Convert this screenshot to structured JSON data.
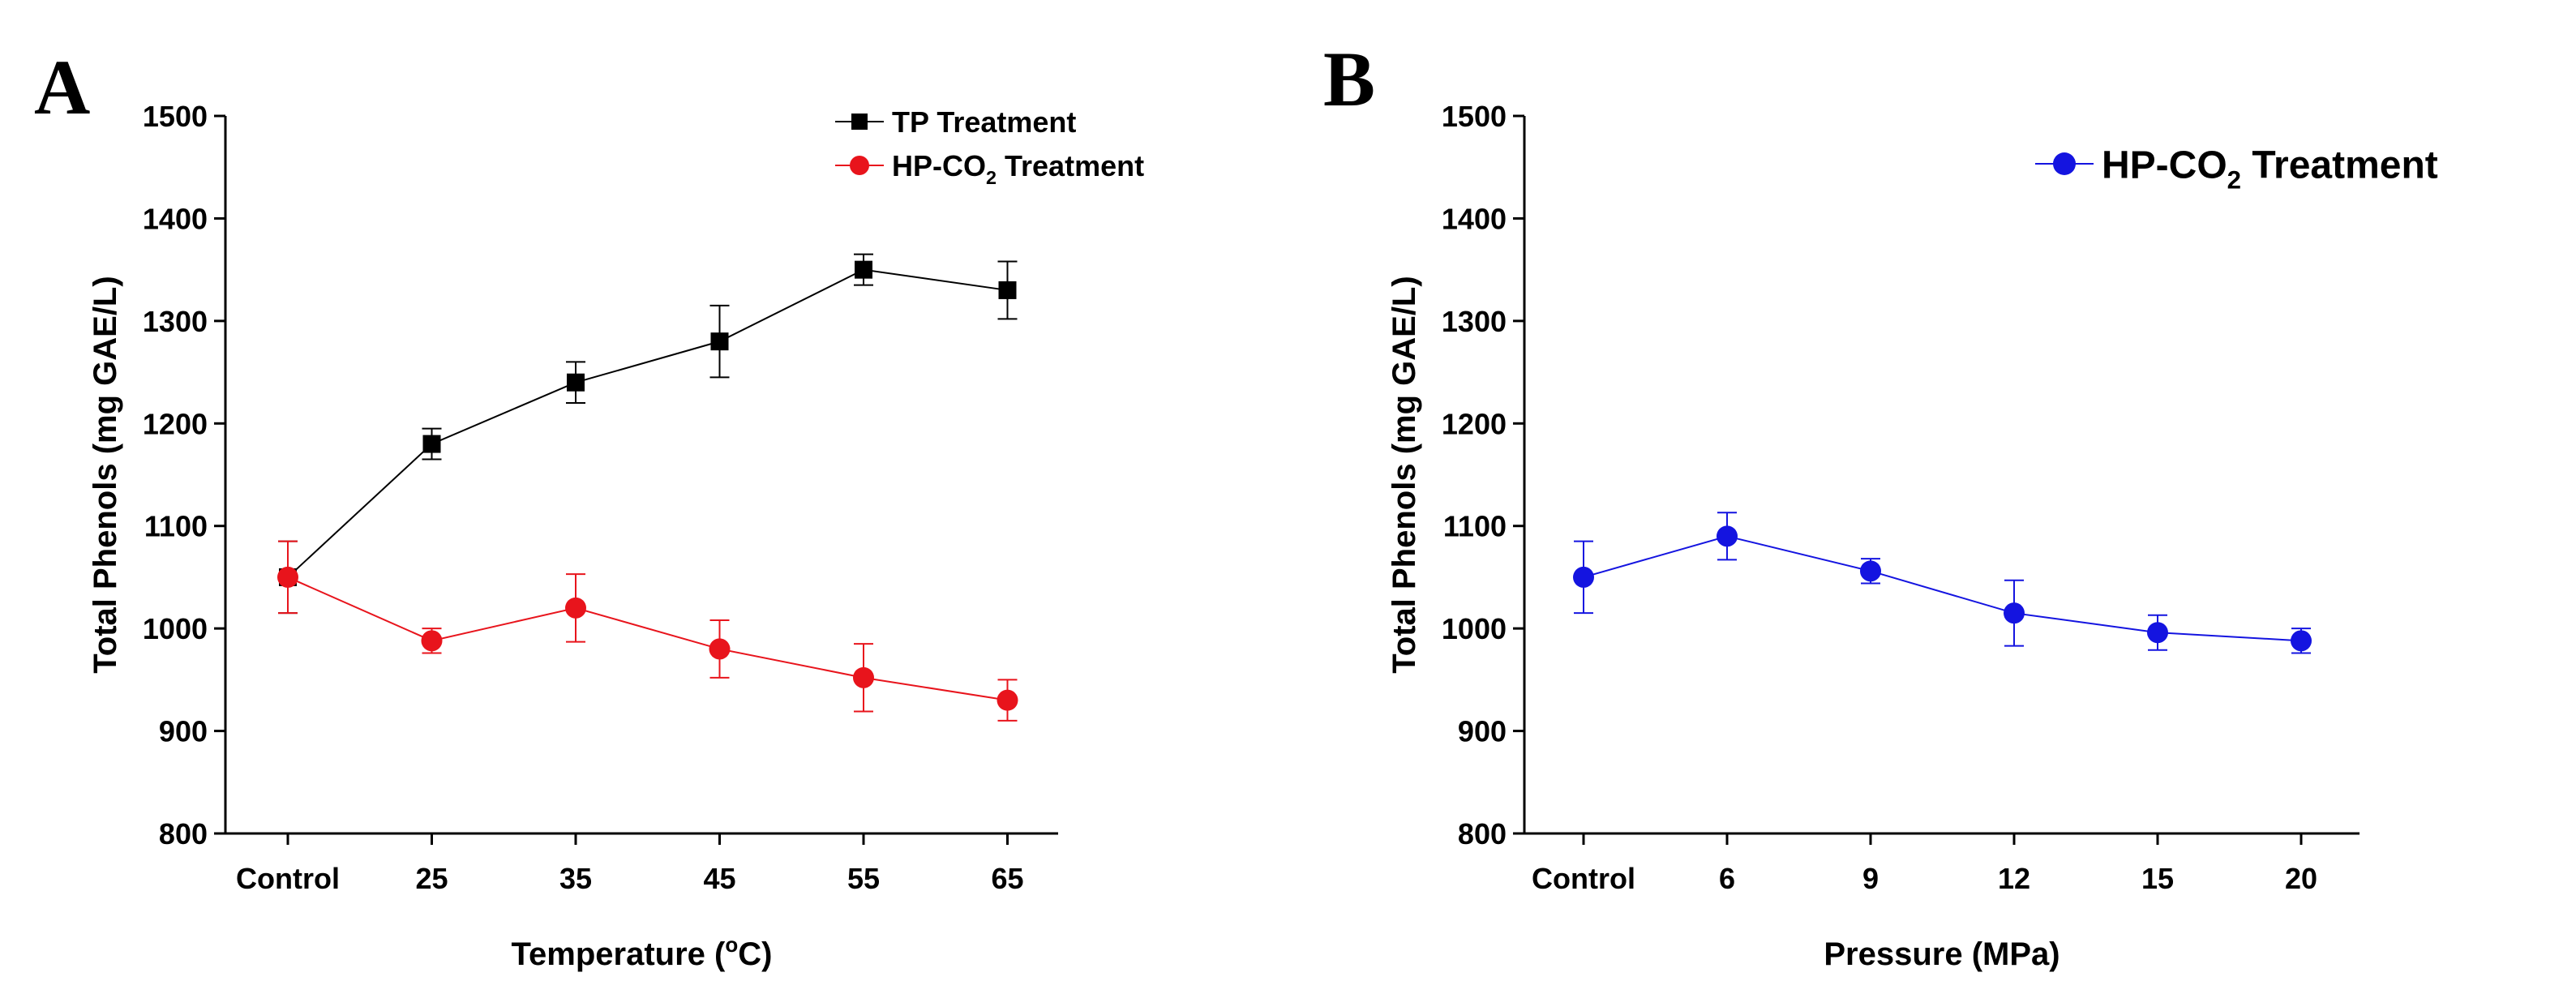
{
  "figure": {
    "panels": [
      {
        "letter": "A",
        "xlabel": "Temperature (",
        "xlabel_sup": "o",
        "xlabel_suffix": "C)",
        "ylabel": "Total Phenols (mg GAE/L)"
      },
      {
        "letter": "B",
        "xlabel": "Pressure (MPa)",
        "ylabel": "Total Phenols (mg GAE/L)"
      }
    ]
  },
  "chart_data": [
    {
      "type": "line",
      "panel": "A",
      "title": "",
      "xlabel": "Temperature (oC)",
      "ylabel": "Total Phenols (mg GAE/L)",
      "categories": [
        "Control",
        "25",
        "35",
        "45",
        "55",
        "65"
      ],
      "ylim": [
        800,
        1500
      ],
      "yticks": [
        800,
        900,
        1000,
        1100,
        1200,
        1300,
        1400,
        1500
      ],
      "legend_position": "top-right",
      "grid": false,
      "series": [
        {
          "name": "TP Treatment",
          "legend_main": "TP Treatment",
          "legend_sub": "",
          "legend_suffix": "",
          "color": "#000000",
          "marker": "square",
          "values": [
            1050,
            1180,
            1240,
            1280,
            1350,
            1330
          ],
          "errors": [
            35,
            15,
            20,
            35,
            15,
            28
          ]
        },
        {
          "name": "HP-CO2 Treatment",
          "legend_main": "HP-CO",
          "legend_sub": "2",
          "legend_suffix": " Treatment",
          "color": "#e8141c",
          "marker": "circle",
          "values": [
            1050,
            988,
            1020,
            980,
            952,
            930
          ],
          "errors": [
            35,
            12,
            33,
            28,
            33,
            20
          ]
        }
      ]
    },
    {
      "type": "line",
      "panel": "B",
      "title": "",
      "xlabel": "Pressure (MPa)",
      "ylabel": "Total Phenols (mg GAE/L)",
      "categories": [
        "Control",
        "6",
        "9",
        "12",
        "15",
        "20"
      ],
      "ylim": [
        800,
        1500
      ],
      "yticks": [
        800,
        900,
        1000,
        1100,
        1200,
        1300,
        1400,
        1500
      ],
      "legend_position": "top-right",
      "grid": false,
      "series": [
        {
          "name": "HP-CO2 Treatment",
          "legend_main": "HP-CO",
          "legend_sub": "2",
          "legend_suffix": " Treatment",
          "color": "#1414e0",
          "marker": "circle",
          "values": [
            1050,
            1090,
            1056,
            1015,
            996,
            988
          ],
          "errors": [
            35,
            23,
            12,
            32,
            17,
            12
          ]
        }
      ]
    }
  ]
}
